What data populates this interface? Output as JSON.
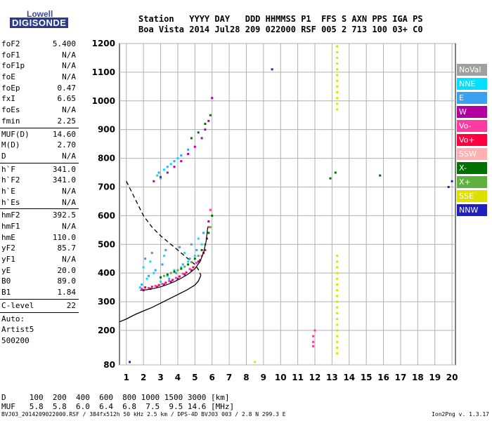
{
  "logo": {
    "top": "Lowell",
    "bottom": "DIGISONDE"
  },
  "header": {
    "line1": "Station   YYYY DAY   DDD HHMMSS P1  FFS S AXN PPS IGA PS",
    "line2": "Boa Vista 2014 Jul28 209 022000 RSF 005 2 713 100 03+ C0"
  },
  "params": [
    {
      "label": "foF2",
      "value": "5.400"
    },
    {
      "label": "foF1",
      "value": "N/A"
    },
    {
      "label": "foF1p",
      "value": "N/A"
    },
    {
      "label": "foE",
      "value": "N/A"
    },
    {
      "label": "foEp",
      "value": "0.47"
    },
    {
      "label": "fxI",
      "value": "6.65"
    },
    {
      "label": "foEs",
      "value": "N/A"
    },
    {
      "label": "fmin",
      "value": "2.25"
    },
    {
      "sep": true
    },
    {
      "label": "MUF(D)",
      "value": "14.60"
    },
    {
      "label": "M(D)",
      "value": "2.70"
    },
    {
      "label": "D",
      "value": "N/A"
    },
    {
      "sep": true
    },
    {
      "label": "h`F",
      "value": "341.0"
    },
    {
      "label": "h`F2",
      "value": "341.0"
    },
    {
      "label": "h`E",
      "value": "N/A"
    },
    {
      "label": "h`Es",
      "value": "N/A"
    },
    {
      "sep": true
    },
    {
      "label": "hmF2",
      "value": "392.5"
    },
    {
      "label": "hmF1",
      "value": "N/A"
    },
    {
      "label": "hmE",
      "value": "110.0"
    },
    {
      "label": "yF2",
      "value": "85.7"
    },
    {
      "label": "yF1",
      "value": "N/A"
    },
    {
      "label": "yE",
      "value": "20.0"
    },
    {
      "label": "B0",
      "value": "89.0"
    },
    {
      "label": "B1",
      "value": "1.84"
    },
    {
      "sep": true
    },
    {
      "label": "C-level",
      "value": "22"
    },
    {
      "sep": true
    },
    {
      "label": "Auto:",
      "value": ""
    },
    {
      "label": "Artist5",
      "value": ""
    },
    {
      "label": "500200",
      "value": ""
    }
  ],
  "legend": [
    {
      "label": "NoVal",
      "color": "#a0a0a0"
    },
    {
      "label": "NNE",
      "color": "#00e0ff"
    },
    {
      "label": "E",
      "color": "#3aa0f0"
    },
    {
      "label": "W",
      "color": "#b000a0"
    },
    {
      "label": "Vo-",
      "color": "#ff3aa0"
    },
    {
      "label": "Vo+",
      "color": "#ff0040"
    },
    {
      "label": "SSW",
      "color": "#ffb0b0"
    },
    {
      "label": "X-",
      "color": "#007000"
    },
    {
      "label": "X+",
      "color": "#60b040"
    },
    {
      "label": "SSE",
      "color": "#e0e000"
    },
    {
      "label": "NNW",
      "color": "#2020c0"
    }
  ],
  "bottom": {
    "d_line": "D     100  200  400  600  800 1000 1500 3000 [km]",
    "muf_line": "MUF   5.8  5.8  6.0  6.4  6.8  7.5  9.5 14.6 [MHz]",
    "footer_left": "BVJ03_2014209022000.RSF / 384fx512h 50 kHz 2.5 km / DPS-4D BVJ03 003 / 2.8 N 299.3 E",
    "footer_right": "Ion2Png v. 1.3.17"
  },
  "chart_data": {
    "type": "scatter",
    "xlim": [
      0.6,
      20.2
    ],
    "ylim": [
      80,
      1200
    ],
    "x_ticks": [
      1,
      2,
      3,
      4,
      5,
      6,
      7,
      8,
      9,
      10,
      11,
      12,
      13,
      14,
      15,
      16,
      17,
      18,
      19,
      20
    ],
    "y_ticks": [
      80,
      200,
      300,
      400,
      500,
      600,
      700,
      800,
      900,
      1000,
      1100,
      1200
    ],
    "grid": true,
    "series": [
      {
        "name": "NNE",
        "color": "#00e0ff",
        "points": [
          [
            1.8,
            350
          ],
          [
            2.2,
            380
          ],
          [
            2.6,
            400
          ],
          [
            3.0,
            370
          ],
          [
            3.4,
            390
          ],
          [
            3.8,
            410
          ],
          [
            4.2,
            420
          ],
          [
            4.6,
            440
          ],
          [
            5.0,
            460
          ],
          [
            5.4,
            500
          ],
          [
            2.0,
            420
          ],
          [
            2.4,
            440
          ],
          [
            3.2,
            460
          ],
          [
            4.4,
            470
          ],
          [
            5.2,
            520
          ],
          [
            2.8,
            740
          ],
          [
            3.2,
            760
          ],
          [
            3.6,
            780
          ],
          [
            4.0,
            800
          ],
          [
            3.0,
            730
          ]
        ]
      },
      {
        "name": "E",
        "color": "#3aa0f0",
        "points": [
          [
            1.9,
            360
          ],
          [
            2.3,
            390
          ],
          [
            2.7,
            410
          ],
          [
            3.1,
            430
          ],
          [
            3.5,
            380
          ],
          [
            3.9,
            400
          ],
          [
            4.3,
            430
          ],
          [
            4.7,
            450
          ],
          [
            5.1,
            480
          ],
          [
            5.5,
            540
          ],
          [
            2.1,
            450
          ],
          [
            2.5,
            470
          ],
          [
            3.3,
            480
          ],
          [
            4.1,
            490
          ],
          [
            4.8,
            500
          ],
          [
            2.9,
            750
          ],
          [
            3.4,
            770
          ],
          [
            3.8,
            790
          ],
          [
            4.2,
            810
          ],
          [
            4.6,
            830
          ]
        ]
      },
      {
        "name": "W",
        "color": "#b000a0",
        "points": [
          [
            2.0,
            340
          ],
          [
            2.4,
            345
          ],
          [
            2.8,
            352
          ],
          [
            3.2,
            360
          ],
          [
            3.6,
            370
          ],
          [
            4.0,
            380
          ],
          [
            4.4,
            395
          ],
          [
            4.8,
            410
          ],
          [
            5.2,
            440
          ],
          [
            5.5,
            470
          ],
          [
            5.7,
            520
          ],
          [
            5.8,
            580
          ],
          [
            2.6,
            720
          ],
          [
            3.0,
            735
          ],
          [
            3.4,
            750
          ],
          [
            3.8,
            770
          ],
          [
            4.2,
            790
          ],
          [
            4.6,
            815
          ],
          [
            5.0,
            840
          ],
          [
            5.4,
            870
          ],
          [
            5.6,
            900
          ],
          [
            5.8,
            930
          ],
          [
            6.0,
            1010
          ]
        ]
      },
      {
        "name": "Vo-",
        "color": "#ff3aa0",
        "points": [
          [
            1.9,
            345
          ],
          [
            2.3,
            348
          ],
          [
            2.7,
            355
          ],
          [
            3.1,
            362
          ],
          [
            3.5,
            372
          ],
          [
            3.9,
            383
          ],
          [
            4.3,
            398
          ],
          [
            4.7,
            414
          ],
          [
            5.1,
            435
          ],
          [
            5.4,
            460
          ],
          [
            5.6,
            500
          ],
          [
            5.8,
            560
          ],
          [
            5.9,
            620
          ],
          [
            11.9,
            180
          ],
          [
            11.9,
            160
          ],
          [
            11.9,
            145
          ],
          [
            12.0,
            200
          ]
        ]
      },
      {
        "name": "Vo+",
        "color": "#ff0040",
        "points": [
          [
            2.1,
            350
          ],
          [
            2.5,
            352
          ],
          [
            2.9,
            358
          ],
          [
            3.3,
            366
          ],
          [
            3.7,
            376
          ],
          [
            4.1,
            388
          ],
          [
            4.5,
            402
          ],
          [
            4.9,
            420
          ],
          [
            5.3,
            445
          ],
          [
            5.6,
            480
          ]
        ]
      },
      {
        "name": "X-",
        "color": "#007000",
        "points": [
          [
            3.0,
            385
          ],
          [
            3.4,
            395
          ],
          [
            3.8,
            405
          ],
          [
            4.2,
            415
          ],
          [
            4.6,
            430
          ],
          [
            5.0,
            450
          ],
          [
            5.4,
            480
          ],
          [
            5.8,
            540
          ],
          [
            6.0,
            600
          ],
          [
            4.8,
            870
          ],
          [
            5.2,
            890
          ],
          [
            5.6,
            920
          ],
          [
            5.9,
            950
          ],
          [
            12.9,
            730
          ],
          [
            15.8,
            740
          ],
          [
            13.2,
            750
          ]
        ]
      },
      {
        "name": "X+",
        "color": "#60b040",
        "points": [
          [
            3.2,
            390
          ],
          [
            3.6,
            400
          ],
          [
            4.0,
            410
          ],
          [
            4.4,
            422
          ],
          [
            4.8,
            438
          ],
          [
            5.2,
            460
          ],
          [
            5.6,
            500
          ],
          [
            5.9,
            560
          ]
        ]
      },
      {
        "name": "SSE",
        "color": "#e0e000",
        "points": [
          [
            13.3,
            1190
          ],
          [
            13.3,
            1170
          ],
          [
            13.3,
            1150
          ],
          [
            13.3,
            1130
          ],
          [
            13.3,
            1110
          ],
          [
            13.3,
            1090
          ],
          [
            13.3,
            1070
          ],
          [
            13.3,
            1050
          ],
          [
            13.3,
            1030
          ],
          [
            13.3,
            1010
          ],
          [
            13.3,
            990
          ],
          [
            13.3,
            970
          ],
          [
            13.3,
            460
          ],
          [
            13.3,
            440
          ],
          [
            13.3,
            420
          ],
          [
            13.3,
            400
          ],
          [
            13.3,
            380
          ],
          [
            13.3,
            360
          ],
          [
            13.3,
            340
          ],
          [
            13.3,
            320
          ],
          [
            13.3,
            300
          ],
          [
            13.3,
            280
          ],
          [
            13.3,
            260
          ],
          [
            13.3,
            240
          ],
          [
            13.3,
            220
          ],
          [
            13.3,
            200
          ],
          [
            13.3,
            180
          ],
          [
            13.3,
            160
          ],
          [
            13.3,
            140
          ],
          [
            13.3,
            120
          ],
          [
            8.5,
            90
          ]
        ]
      },
      {
        "name": "NNW",
        "color": "#2020c0",
        "points": [
          [
            1.2,
            90
          ],
          [
            9.5,
            1110
          ],
          [
            20.0,
            720
          ],
          [
            19.8,
            700
          ]
        ]
      }
    ],
    "profile_solid": [
      [
        0.6,
        230
      ],
      [
        1.0,
        240
      ],
      [
        1.5,
        255
      ],
      [
        2.0,
        268
      ],
      [
        2.5,
        280
      ],
      [
        3.0,
        295
      ],
      [
        3.5,
        310
      ],
      [
        4.0,
        325
      ],
      [
        4.5,
        340
      ],
      [
        5.0,
        358
      ],
      [
        5.2,
        372
      ],
      [
        5.35,
        392
      ]
    ],
    "profile_dashed": [
      [
        1.0,
        720
      ],
      [
        1.5,
        660
      ],
      [
        2.0,
        600
      ],
      [
        2.5,
        560
      ],
      [
        3.0,
        530
      ],
      [
        3.5,
        505
      ],
      [
        4.0,
        480
      ],
      [
        4.5,
        455
      ],
      [
        5.0,
        430
      ],
      [
        5.2,
        412
      ],
      [
        5.35,
        392
      ]
    ],
    "trace_fit": [
      [
        1.8,
        340
      ],
      [
        2.2,
        342
      ],
      [
        2.6,
        346
      ],
      [
        3.0,
        352
      ],
      [
        3.4,
        360
      ],
      [
        3.8,
        370
      ],
      [
        4.2,
        382
      ],
      [
        4.6,
        396
      ],
      [
        5.0,
        415
      ],
      [
        5.3,
        440
      ],
      [
        5.5,
        470
      ],
      [
        5.65,
        510
      ],
      [
        5.75,
        560
      ]
    ]
  }
}
